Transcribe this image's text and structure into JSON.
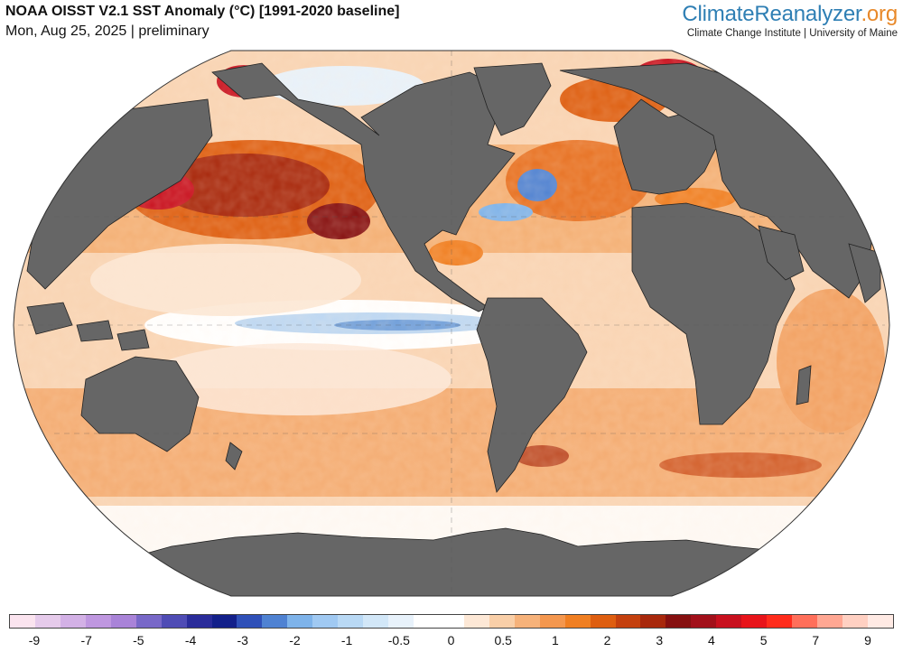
{
  "header": {
    "title": "NOAA OISST V2.1 SST Anomaly (°C) [1991-2020 baseline]",
    "date_line": "Mon, Aug 25, 2025 | preliminary"
  },
  "brand": {
    "name_part1": "ClimateReanalyzer",
    "name_part2": ".org",
    "subtitle": "Climate Change Institute | University of Maine",
    "color_part1": "#2f7fb4",
    "color_part2": "#e8892a"
  },
  "map": {
    "projection": "Robinson-like world",
    "land_color": "#666666",
    "ocean_neutral": "#ffffff"
  },
  "legend": {
    "colors": [
      "#fbe4ef",
      "#e6cbeb",
      "#d3b1e6",
      "#bf97e0",
      "#a983d8",
      "#7868c8",
      "#4f4cb5",
      "#2a2c9a",
      "#13208a",
      "#2f50b8",
      "#4f82d2",
      "#7eb3ea",
      "#a0c9f2",
      "#b9d9f5",
      "#d2e7f8",
      "#e8f2fb",
      "#ffffff",
      "#ffffff",
      "#fde8d6",
      "#f9cfa8",
      "#f6b27a",
      "#f4974e",
      "#f07f22",
      "#de5e10",
      "#c4400e",
      "#a8280c",
      "#861010",
      "#a2101a",
      "#c8101e",
      "#e8141a",
      "#ff2c1c",
      "#ff6f5a",
      "#ffa793",
      "#ffd0c2",
      "#ffeae4"
    ],
    "labels": [
      "-9",
      "-7",
      "-5",
      "-4",
      "-3",
      "-2",
      "-1",
      "-0.5",
      "0",
      "0.5",
      "1",
      "2",
      "3",
      "4",
      "5",
      "7",
      "9"
    ]
  }
}
